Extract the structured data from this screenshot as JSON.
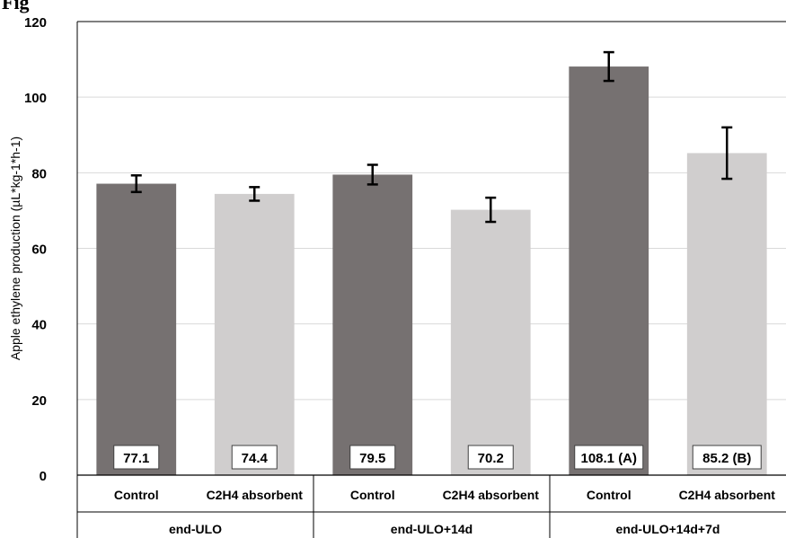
{
  "figure_label": "Fig",
  "chart_data": {
    "type": "bar",
    "title": "",
    "ylabel": "Apple ethylene production (µL*kg-1*h-1)",
    "xlabel": "",
    "ylim": [
      0,
      120
    ],
    "yticks": [
      0,
      20,
      40,
      60,
      80,
      100,
      120
    ],
    "grid": true,
    "legend": "none",
    "groups": [
      {
        "name": "end-ULO",
        "bars": [
          {
            "category": "Control",
            "value": 77.1,
            "error": 2.2,
            "label": "77.1",
            "color": "#767171"
          },
          {
            "category": "C2H4 absorbent",
            "value": 74.4,
            "error": 1.8,
            "label": "74.4",
            "color": "#d0cece"
          }
        ]
      },
      {
        "name": "end-ULO+14d",
        "bars": [
          {
            "category": "Control",
            "value": 79.5,
            "error": 2.6,
            "label": "79.5",
            "color": "#767171"
          },
          {
            "category": "C2H4 absorbent",
            "value": 70.2,
            "error": 3.2,
            "label": "70.2",
            "color": "#d0cece"
          }
        ]
      },
      {
        "name": "end-ULO+14d+7d",
        "bars": [
          {
            "category": "Control",
            "value": 108.1,
            "error": 3.8,
            "label": "108.1 (A)",
            "color": "#767171"
          },
          {
            "category": "C2H4 absorbent",
            "value": 85.2,
            "error": 6.8,
            "label": "85.2 (B)",
            "color": "#d0cece"
          }
        ]
      }
    ]
  }
}
